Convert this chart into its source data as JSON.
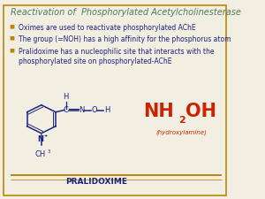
{
  "title": "Reactivation of  Phosphorylated Acetylcholinesterase",
  "title_color": "#4a7c59",
  "title_fontsize": 7.0,
  "bullet_color": "#b8860b",
  "text_color": "#1a237e",
  "bullet_points": [
    "Oximes are used to reactivate phosphorylated AChE",
    "The group (=NOH) has a high affinity for the phosphorus atom",
    "Pralidoxime has a nucleophilic site that interacts with the\nphosphorylated site on phosphorylated-AChE"
  ],
  "bg_color": "#f2efe2",
  "border_color": "#b8860b",
  "pralidoxime_label": "PRALIDOXIME",
  "pralidoxime_color": "#1a237e",
  "nh2oh_color": "#cc2200",
  "nh2oh_sub_label": "(hydroxylamine)",
  "molecule_color": "#1a237e",
  "line_color": "#b8860b",
  "figsize": [
    3.0,
    2.25
  ],
  "dpi": 100
}
